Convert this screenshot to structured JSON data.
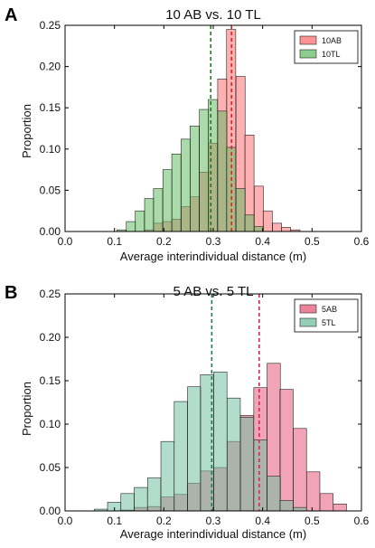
{
  "chart_data": [
    {
      "type": "bar",
      "panel_letter": "A",
      "title": "10 AB vs. 10 TL",
      "xlabel": "Average interindividual distance (m)",
      "ylabel": "Proportion",
      "xlim": [
        0.0,
        0.6
      ],
      "ylim": [
        0.0,
        0.25
      ],
      "xticks": [
        "0.0",
        "0.1",
        "0.2",
        "0.3",
        "0.4",
        "0.5",
        "0.6"
      ],
      "yticks": [
        "0.00",
        "0.05",
        "0.10",
        "0.15",
        "0.20",
        "0.25"
      ],
      "bin_width": 0.0185,
      "legend_position": "top-right",
      "series": [
        {
          "name": "10AB",
          "color": "#ff6f6f",
          "bin_starts": [
            0.161,
            0.179,
            0.198,
            0.216,
            0.235,
            0.253,
            0.272,
            0.29,
            0.309,
            0.327,
            0.346,
            0.364,
            0.383,
            0.401,
            0.42,
            0.438,
            0.457
          ],
          "values": [
            0.002,
            0.01,
            0.012,
            0.015,
            0.03,
            0.042,
            0.072,
            0.107,
            0.185,
            0.245,
            0.188,
            0.117,
            0.055,
            0.025,
            0.01,
            0.005,
            0.002
          ]
        },
        {
          "name": "10TL",
          "color": "#66bb66",
          "bin_starts": [
            0.105,
            0.124,
            0.142,
            0.161,
            0.179,
            0.198,
            0.216,
            0.235,
            0.253,
            0.272,
            0.29,
            0.309,
            0.327,
            0.346,
            0.364,
            0.383
          ],
          "values": [
            0.002,
            0.012,
            0.025,
            0.04,
            0.052,
            0.075,
            0.094,
            0.112,
            0.128,
            0.148,
            0.16,
            0.146,
            0.102,
            0.052,
            0.02,
            0.006
          ]
        }
      ],
      "vlines": [
        {
          "x": 0.295,
          "color": "#227722"
        },
        {
          "x": 0.337,
          "color": "#dd2222"
        }
      ]
    },
    {
      "type": "bar",
      "panel_letter": "B",
      "title": "5 AB vs. 5 TL",
      "xlabel": "Average interindividual distance (m)",
      "ylabel": "Proportion",
      "xlim": [
        0.0,
        0.6
      ],
      "ylim": [
        0.0,
        0.25
      ],
      "xticks": [
        "0.0",
        "0.1",
        "0.2",
        "0.3",
        "0.4",
        "0.5",
        "0.6"
      ],
      "yticks": [
        "0.00",
        "0.05",
        "0.10",
        "0.15",
        "0.20",
        "0.25"
      ],
      "bin_width": 0.0268,
      "legend_position": "top-right",
      "series": [
        {
          "name": "5AB",
          "color": "#e65a7a",
          "bin_starts": [
            0.113,
            0.14,
            0.167,
            0.194,
            0.221,
            0.248,
            0.274,
            0.301,
            0.328,
            0.355,
            0.382,
            0.409,
            0.435,
            0.462,
            0.489,
            0.516,
            0.543
          ],
          "values": [
            0.001,
            0.004,
            0.005,
            0.016,
            0.019,
            0.032,
            0.046,
            0.05,
            0.08,
            0.11,
            0.142,
            0.17,
            0.14,
            0.095,
            0.045,
            0.02,
            0.008
          ]
        },
        {
          "name": "5TL",
          "color": "#72bfa0",
          "bin_starts": [
            0.059,
            0.086,
            0.113,
            0.14,
            0.167,
            0.194,
            0.221,
            0.248,
            0.274,
            0.301,
            0.328,
            0.355,
            0.382,
            0.409,
            0.435,
            0.462
          ],
          "values": [
            0.002,
            0.01,
            0.02,
            0.027,
            0.038,
            0.08,
            0.126,
            0.143,
            0.157,
            0.16,
            0.13,
            0.108,
            0.082,
            0.04,
            0.012,
            0.004
          ]
        }
      ],
      "vlines": [
        {
          "x": 0.297,
          "color": "#1f7a4a"
        },
        {
          "x": 0.393,
          "color": "#dd2255"
        }
      ]
    }
  ]
}
